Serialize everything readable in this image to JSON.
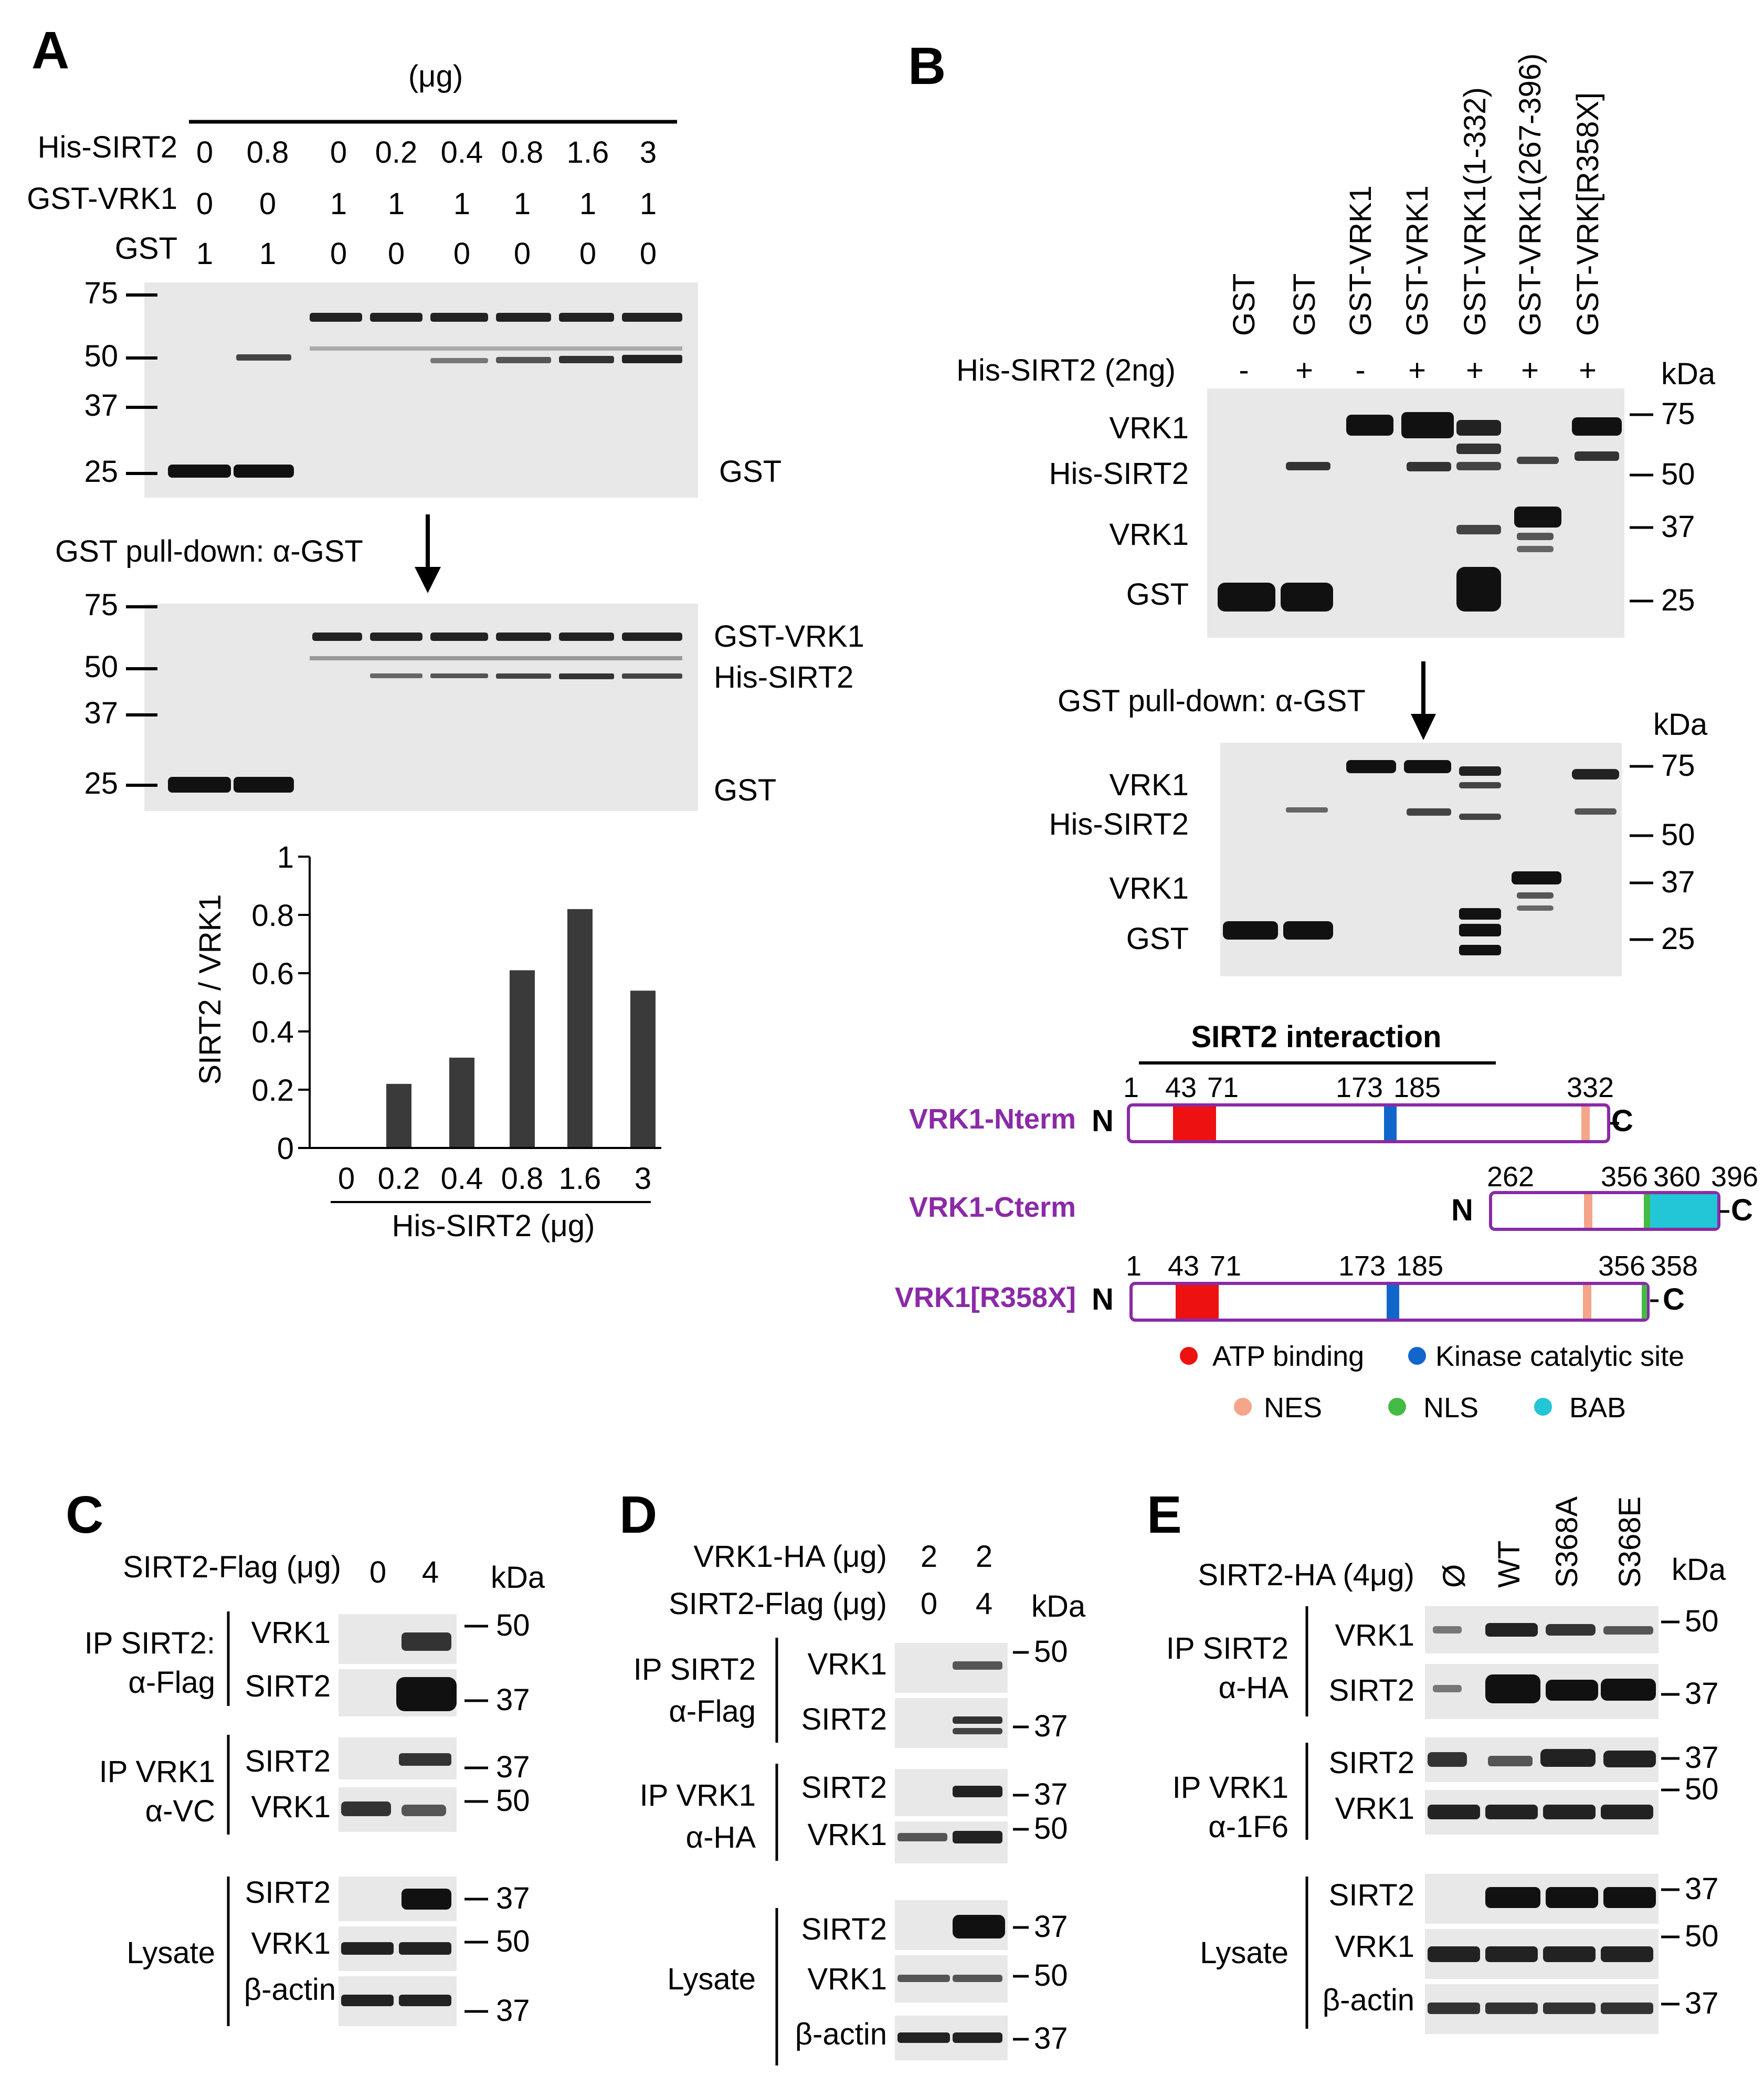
{
  "panels": {
    "A": {
      "letter": "A",
      "unit": "(μg)",
      "rows": [
        {
          "label": "His-SIRT2",
          "values": [
            "0",
            "0.8",
            "0",
            "0.2",
            "0.4",
            "0.8",
            "1.6",
            "3"
          ]
        },
        {
          "label": "GST-VRK1",
          "values": [
            "0",
            "0",
            "1",
            "1",
            "1",
            "1",
            "1",
            "1"
          ]
        },
        {
          "label": "GST",
          "values": [
            "1",
            "1",
            "0",
            "0",
            "0",
            "0",
            "0",
            "0"
          ]
        }
      ],
      "markers": [
        "75",
        "50",
        "37",
        "25"
      ],
      "blot1_label": "GST",
      "arrow_label": "GST pull-down: α-GST",
      "blot2_labels": [
        "GST-VRK1",
        "His-SIRT2",
        "GST"
      ]
    },
    "B": {
      "letter": "B",
      "lanes": [
        "GST",
        "GST",
        "GST-VRK1",
        "GST-VRK1",
        "GST-VRK1(1-332)",
        "GST-VRK1(267-396)",
        "GST-VRK[R358X]"
      ],
      "his_label": "His-SIRT2 (2ng)",
      "his_signs": [
        "-",
        "+",
        "-",
        "+",
        "+",
        "+",
        "+"
      ],
      "kda": "kDa",
      "markers": [
        "75",
        "50",
        "37",
        "25"
      ],
      "blot_labels": [
        "VRK1",
        "His-SIRT2",
        "VRK1",
        "GST"
      ],
      "arrow_label": "GST pull-down: α-GST"
    },
    "C": {
      "letter": "C",
      "condition": "SIRT2-Flag (μg)",
      "values": [
        "0",
        "4"
      ],
      "kda": "kDa",
      "groups": [
        {
          "label": "IP SIRT2:",
          "label2": "α-Flag",
          "rows": [
            "VRK1",
            "SIRT2"
          ],
          "markers": [
            "50",
            "37"
          ]
        },
        {
          "label": "IP VRK1",
          "label2": "α-VC",
          "rows": [
            "SIRT2",
            "VRK1"
          ],
          "markers": [
            "37",
            "50"
          ]
        },
        {
          "label": "Lysate",
          "label2": "",
          "rows": [
            "SIRT2",
            "VRK1",
            "β-actin"
          ],
          "markers": [
            "37",
            "50",
            "37"
          ]
        }
      ]
    },
    "D": {
      "letter": "D",
      "conditions": [
        {
          "label": "VRK1-HA (μg)",
          "values": [
            "2",
            "2"
          ]
        },
        {
          "label": "SIRT2-Flag (μg)",
          "values": [
            "0",
            "4"
          ]
        }
      ],
      "kda": "kDa",
      "groups": [
        {
          "label": "IP SIRT2",
          "label2": "α-Flag",
          "rows": [
            "VRK1",
            "SIRT2"
          ],
          "markers": [
            "50",
            "37"
          ]
        },
        {
          "label": "IP VRK1",
          "label2": "α-HA",
          "rows": [
            "SIRT2",
            "VRK1"
          ],
          "markers": [
            "37",
            "50"
          ]
        },
        {
          "label": "Lysate",
          "label2": "",
          "rows": [
            "SIRT2",
            "VRK1",
            "β-actin"
          ],
          "markers": [
            "37",
            "50",
            "37"
          ]
        }
      ]
    },
    "E": {
      "letter": "E",
      "condition": "SIRT2-HA (4μg)",
      "lanes": [
        "Ø",
        "WT",
        "S368A",
        "S368E"
      ],
      "kda": "kDa",
      "groups": [
        {
          "label": "IP SIRT2",
          "label2": "α-HA",
          "rows": [
            "VRK1",
            "SIRT2"
          ],
          "markers": [
            "50",
            "37"
          ]
        },
        {
          "label": "IP VRK1",
          "label2": "α-1F6",
          "rows": [
            "SIRT2",
            "VRK1"
          ],
          "markers": [
            "37",
            "50"
          ]
        },
        {
          "label": "Lysate",
          "label2": "",
          "rows": [
            "SIRT2",
            "VRK1",
            "β-actin"
          ],
          "markers": [
            "37",
            "50",
            "37"
          ]
        }
      ]
    }
  },
  "schematic": {
    "title": "SIRT2 interaction",
    "constructs": [
      {
        "name": "VRK1-Nterm",
        "ticks": [
          "1",
          "43",
          "71",
          "173",
          "185",
          "332"
        ]
      },
      {
        "name": "VRK1-Cterm",
        "ticks": [
          "262",
          "356",
          "360",
          "396"
        ]
      },
      {
        "name": "VRK1[R358X]",
        "ticks": [
          "1",
          "43",
          "71",
          "173",
          "185",
          "356",
          "358"
        ]
      }
    ],
    "n_label": "N",
    "c_label": "C",
    "legend": [
      {
        "label": "ATP binding",
        "color": "#ee1111"
      },
      {
        "label": "Kinase catalytic site",
        "color": "#1166cc"
      },
      {
        "label": "NES",
        "color": "#f4a58a"
      },
      {
        "label": "NLS",
        "color": "#44bb44"
      },
      {
        "label": "BAB",
        "color": "#22c6d6"
      }
    ],
    "outline_color": "#8a2aa6"
  },
  "chart_data": {
    "type": "bar",
    "categories": [
      "0",
      "0.2",
      "0.4",
      "0.8",
      "1.6",
      "3"
    ],
    "values": [
      0,
      0.22,
      0.31,
      0.61,
      0.82,
      0.54
    ],
    "ylabel": "SIRT2 / VRK1",
    "xlabel": "His-SIRT2 (μg)",
    "yticks": [
      "0",
      "0.2",
      "0.4",
      "0.6",
      "0.8",
      "1"
    ],
    "ylim": [
      0,
      1
    ],
    "bar_color": "#3a3a3a"
  }
}
